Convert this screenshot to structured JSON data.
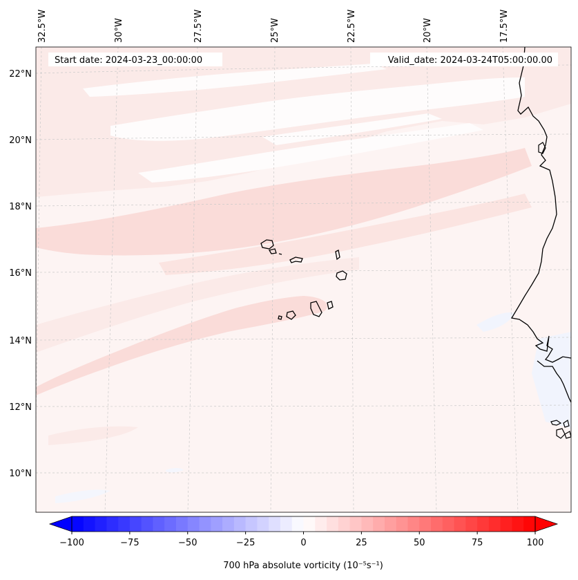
{
  "map": {
    "start_date_label": "Start date: 2024-03-23_00:00:00",
    "valid_date_label": "Valid_date: 2024-03-24T05:00:00.00",
    "lon_labels": [
      "32.5°W",
      "30°W",
      "27.5°W",
      "25°W",
      "22.5°W",
      "20°W",
      "17.5°W"
    ],
    "lat_labels": [
      "22°N",
      "20°N",
      "18°N",
      "16°N",
      "14°N",
      "12°N",
      "10°N"
    ],
    "field_colors": {
      "background": "#fdf4f3",
      "light_band": "#fbeae8",
      "medium_band": "#fadcd9",
      "white_band": "#fefcfc",
      "blue_patch": "#f1f4fd",
      "coast": "#000000",
      "gridline": "#c8c8c8"
    }
  },
  "colorbar": {
    "label": "700 hPa absolute vorticity (10⁻⁵s⁻¹)",
    "tick_labels": [
      "−100",
      "−75",
      "−50",
      "−25",
      "0",
      "25",
      "50",
      "75",
      "100"
    ],
    "min": -100,
    "max": 100,
    "step": 5,
    "low_color": "#0000ff",
    "mid_color": "#ffffff",
    "high_color": "#ff0000"
  }
}
